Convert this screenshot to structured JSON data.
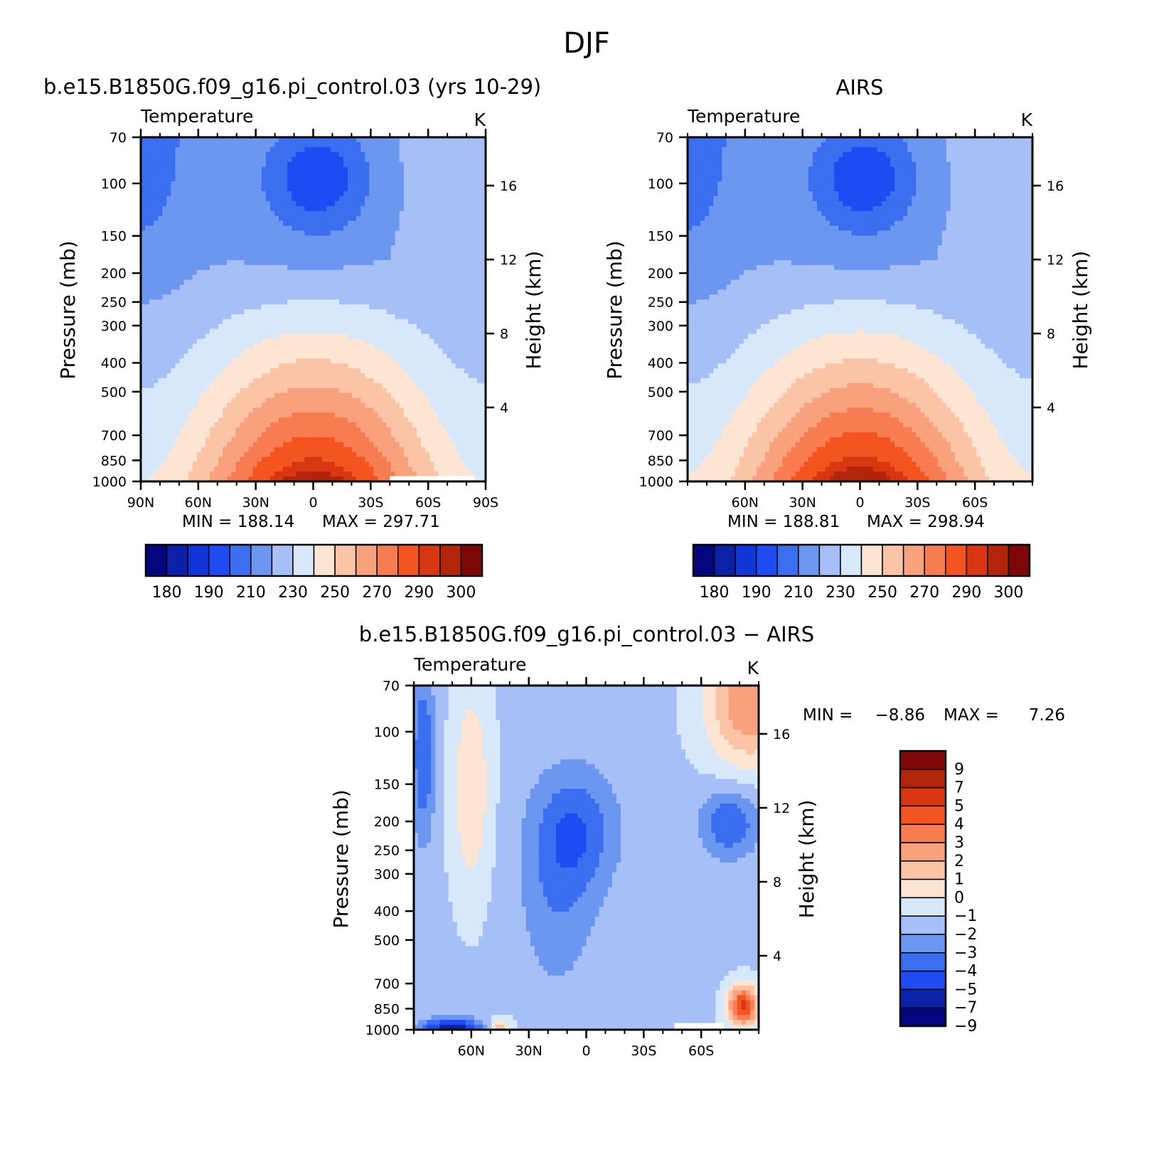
{
  "figure": {
    "title": "DJF"
  },
  "colors": {
    "temperature_palette": [
      "#03067c",
      "#0b21a8",
      "#1135d8",
      "#1e4cf2",
      "#3b6fef",
      "#6c97f0",
      "#a6c0f7",
      "#d7e8fb",
      "#fde5d4",
      "#fbc4a7",
      "#f9a07c",
      "#f87c52",
      "#f4541f",
      "#d93612",
      "#b3250a",
      "#7e0707"
    ],
    "diff_palette": [
      "#03067c",
      "#0b21a8",
      "#1e4cf2",
      "#3b6fef",
      "#6c97f0",
      "#a6c0f7",
      "#d7e8fb",
      "#fde5d4",
      "#fbc4a7",
      "#f9a07c",
      "#f87c52",
      "#f4541f",
      "#d93612",
      "#b3250a",
      "#7e0707"
    ],
    "missing": "#ffffff"
  },
  "chart_data": [
    {
      "type": "heatmap",
      "title": "b.e15.B1850G.f09_g16.pi_control.03 (yrs 10-29)",
      "left_label": "Temperature",
      "right_label": "K",
      "ylabel": "Pressure (mb)",
      "ylabel2": "Height (km)",
      "x_tick_labels": [
        "90N",
        "60N",
        "30N",
        "0",
        "30S",
        "60S",
        "90S"
      ],
      "x_ticks": [
        90,
        60,
        30,
        0,
        -30,
        -60,
        -90
      ],
      "xlim": [
        90,
        -90
      ],
      "y_tick_labels": [
        "70",
        "100",
        "150",
        "200",
        "250",
        "300",
        "400",
        "500",
        "700",
        "850",
        "1000"
      ],
      "y_ticks": [
        70,
        100,
        150,
        200,
        250,
        300,
        400,
        500,
        700,
        850,
        1000
      ],
      "ylim": [
        70,
        1000
      ],
      "y_log_scale": true,
      "height_tick_labels": [
        "16",
        "12",
        "8",
        "4"
      ],
      "height_ticks_km": [
        16,
        12,
        8,
        4
      ],
      "min_label": "MIN = 188.14",
      "max_label": "MAX = 297.71",
      "min": 188.14,
      "max": 297.71,
      "colorbar_labels": [
        "180",
        "190",
        "210",
        "230",
        "250",
        "270",
        "290",
        "300"
      ],
      "colorbar_position": "bottom",
      "levels": [
        180,
        185,
        190,
        200,
        210,
        220,
        230,
        240,
        250,
        260,
        270,
        280,
        290,
        295,
        300
      ]
    },
    {
      "type": "heatmap",
      "title": "AIRS",
      "left_label": "Temperature",
      "right_label": "K",
      "ylabel": "Pressure (mb)",
      "ylabel2": "Height (km)",
      "x_tick_labels": [
        "60N",
        "30N",
        "0",
        "30S",
        "60S"
      ],
      "x_ticks": [
        60,
        30,
        0,
        -30,
        -60
      ],
      "xlim": [
        90,
        -90
      ],
      "y_tick_labels": [
        "70",
        "100",
        "150",
        "200",
        "250",
        "300",
        "400",
        "500",
        "700",
        "850",
        "1000"
      ],
      "y_ticks": [
        70,
        100,
        150,
        200,
        250,
        300,
        400,
        500,
        700,
        850,
        1000
      ],
      "ylim": [
        70,
        1000
      ],
      "y_log_scale": true,
      "height_tick_labels": [
        "16",
        "12",
        "8",
        "4"
      ],
      "height_ticks_km": [
        16,
        12,
        8,
        4
      ],
      "min_label": "MIN = 188.81",
      "max_label": "MAX = 298.94",
      "min": 188.81,
      "max": 298.94,
      "colorbar_labels": [
        "180",
        "190",
        "210",
        "230",
        "250",
        "270",
        "290",
        "300"
      ],
      "colorbar_position": "bottom",
      "levels": [
        180,
        185,
        190,
        200,
        210,
        220,
        230,
        240,
        250,
        260,
        270,
        280,
        290,
        295,
        300
      ]
    },
    {
      "type": "heatmap",
      "title": "b.e15.B1850G.f09_g16.pi_control.03 − AIRS",
      "left_label": "Temperature",
      "right_label": "K",
      "ylabel": "Pressure (mb)",
      "ylabel2": "Height (km)",
      "x_tick_labels": [
        "60N",
        "30N",
        "0",
        "30S",
        "60S"
      ],
      "x_ticks": [
        60,
        30,
        0,
        -30,
        -60
      ],
      "xlim": [
        90,
        -90
      ],
      "y_tick_labels": [
        "70",
        "100",
        "150",
        "200",
        "250",
        "300",
        "400",
        "500",
        "700",
        "850",
        "1000"
      ],
      "y_ticks": [
        70,
        100,
        150,
        200,
        250,
        300,
        400,
        500,
        700,
        850,
        1000
      ],
      "ylim": [
        70,
        1000
      ],
      "y_log_scale": true,
      "height_tick_labels": [
        "16",
        "12",
        "8",
        "4"
      ],
      "height_ticks_km": [
        16,
        12,
        8,
        4
      ],
      "min_label": "MIN =",
      "min_value_label": "−8.86",
      "max_label": "MAX =",
      "max_value_label": "7.26",
      "min": -8.86,
      "max": 7.26,
      "colorbar_labels": [
        "9",
        "7",
        "5",
        "4",
        "3",
        "2",
        "1",
        "0",
        "−1",
        "−2",
        "−3",
        "−4",
        "−5",
        "−7",
        "−9"
      ],
      "colorbar_position": "right",
      "levels": [
        -9,
        -7,
        -5,
        -4,
        -3,
        -2,
        -1,
        0,
        1,
        2,
        3,
        4,
        5,
        7
      ]
    }
  ]
}
